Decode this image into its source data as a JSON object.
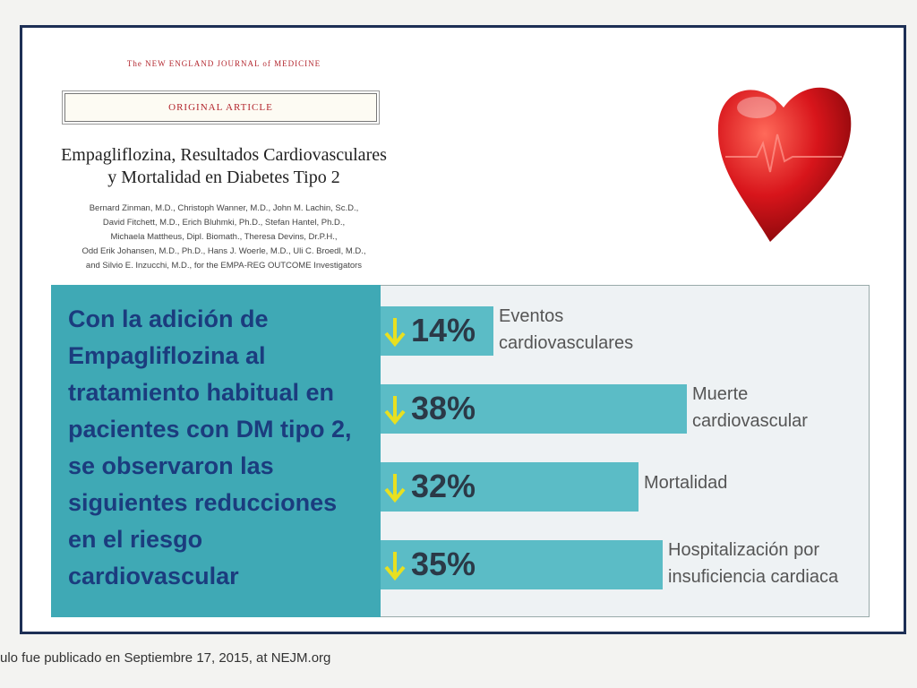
{
  "journal": "The NEW ENGLAND JOURNAL of MEDICINE",
  "article_type": "ORIGINAL ARTICLE",
  "title_lines": [
    "Empagliflozina, Resultados Cardiovasculares",
    "y Mortalidad en Diabetes Tipo 2"
  ],
  "authors_lines": [
    "Bernard Zinman, M.D., Christoph Wanner, M.D., John M. Lachin, Sc.D.,",
    "David Fitchett, M.D., Erich Bluhmki, Ph.D., Stefan Hantel, Ph.D.,",
    "Michaela Mattheus, Dipl. Biomath., Theresa Devins, Dr.P.H.,",
    "Odd Erik Johansen, M.D., Ph.D., Hans J. Woerle, M.D., Uli C. Broedl, M.D.,",
    "and Silvio E. Inzucchi, M.D., for the EMPA-REG OUTCOME Investigators"
  ],
  "summary": "Con la adición de Empagliflozina al tratamiento habitual en pacientes con DM tipo 2, se observaron las siguientes reducciones en el riesgo cardiovascular",
  "footer": "ulo fue publicado en Septiembre 17, 2015, at NEJM.org",
  "chart_data": {
    "type": "bar",
    "categories": [
      "Eventos cardiovasculares",
      "Muerte cardiovascular",
      "Mortalidad",
      "Hospitalización por insuficiencia cardiaca"
    ],
    "values": [
      14,
      38,
      32,
      35
    ],
    "value_labels": [
      "14%",
      "38%",
      "32%",
      "35%"
    ],
    "color": "#5bbcc6"
  }
}
